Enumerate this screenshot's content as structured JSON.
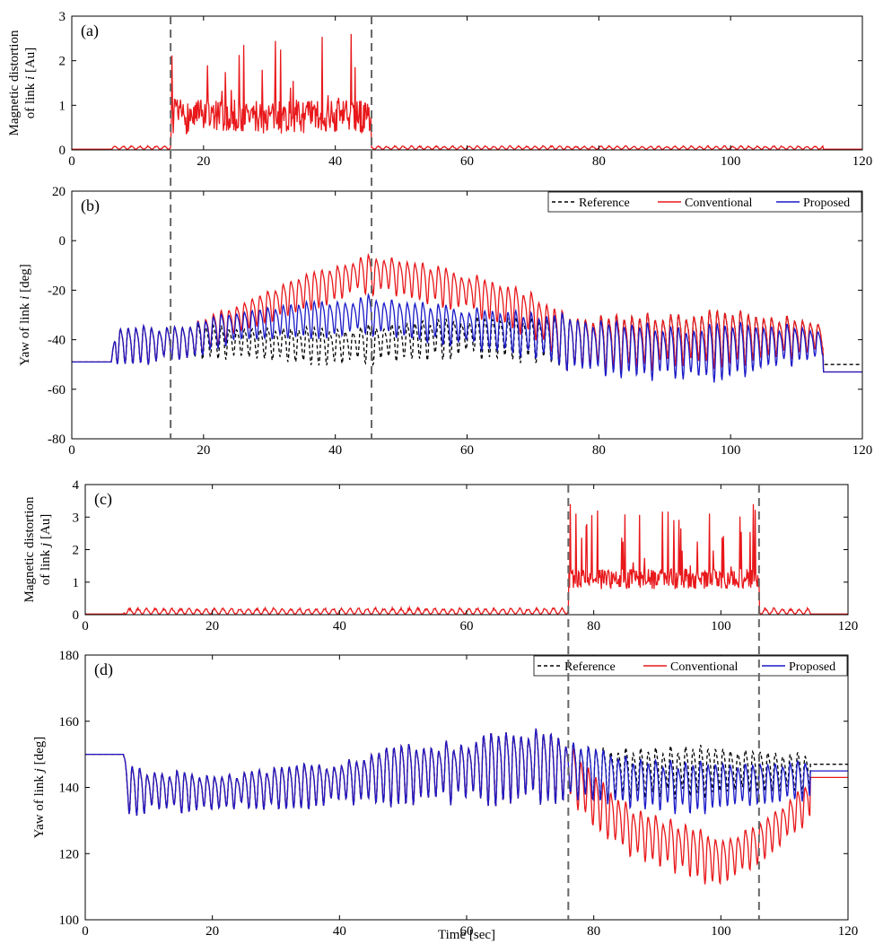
{
  "colors": {
    "reference": "#000000",
    "conventional": "#e8181b",
    "proposed": "#1a1ac8",
    "marker": "#666666"
  },
  "x_axis": {
    "label": "Time [sec]",
    "ticks": [
      "0",
      "20",
      "40",
      "60",
      "80",
      "100",
      "120"
    ]
  },
  "chart_data": [
    {
      "id": "a",
      "panel_label": "(a)",
      "type": "line",
      "ylabel_line1": "Magnetic distortion",
      "ylabel_line2_prefix": "of link ",
      "ylabel_var": "i",
      "ylabel_line2_suffix": " [Au]",
      "xlim": [
        0,
        120
      ],
      "ylim": [
        0,
        3
      ],
      "xticks": [
        0,
        20,
        40,
        60,
        80,
        100,
        120
      ],
      "yticks": [
        0,
        1,
        2,
        3
      ],
      "ytick_labels": [
        "0",
        "1",
        "2",
        "3"
      ],
      "markers_x": [
        15,
        45.5
      ],
      "series": [
        {
          "name": "Conventional",
          "key": "conventional",
          "signal": "distortion",
          "x_start": 0,
          "x_end": 120,
          "step": 0.1,
          "active": [
            15,
            45.5
          ],
          "baseline": 0.015,
          "quiet_window": [
            6,
            114
          ],
          "quiet_amplitude": 0.08,
          "quiet_freq": 0.8,
          "active_mean": 0.75,
          "active_spread": 0.55,
          "peak_max": 2.6,
          "seed": 7
        }
      ]
    },
    {
      "id": "b",
      "panel_label": "(b)",
      "type": "line",
      "ylabel_prefix": "Yaw of link ",
      "ylabel_var": "i",
      "ylabel_suffix": " [deg]",
      "xlim": [
        0,
        120
      ],
      "ylim": [
        -80,
        20
      ],
      "xticks": [
        0,
        20,
        40,
        60,
        80,
        100,
        120
      ],
      "yticks": [
        -80,
        -60,
        -40,
        -20,
        0,
        20
      ],
      "ytick_labels": [
        "-80",
        "-60",
        "-40",
        "-20",
        "0",
        "20"
      ],
      "markers_x": [
        15,
        45.5
      ],
      "legend": {
        "position": "top-right",
        "items": [
          {
            "label": "Reference",
            "key": "reference",
            "dash": "4,3"
          },
          {
            "label": "Conventional",
            "key": "conventional",
            "dash": ""
          },
          {
            "label": "Proposed",
            "key": "proposed",
            "dash": ""
          }
        ]
      },
      "series": [
        {
          "name": "Reference",
          "key": "reference",
          "dash": "4,3",
          "signal": "yaw",
          "x_start": 0,
          "x_end": 120,
          "step": 0.1,
          "osc_window": [
            6,
            114
          ],
          "start_level": -49,
          "end_level": -50,
          "freq": 0.85,
          "center": [
            [
              6,
              -42
            ],
            [
              20,
              -40
            ],
            [
              40,
              -42
            ],
            [
              60,
              -38
            ],
            [
              80,
              -40
            ],
            [
              100,
              -38
            ],
            [
              114,
              -38
            ]
          ],
          "amplitude": [
            [
              6,
              14
            ],
            [
              20,
              12
            ],
            [
              40,
              13
            ],
            [
              60,
              14
            ],
            [
              80,
              20
            ],
            [
              100,
              19
            ],
            [
              114,
              12
            ]
          ],
          "drift": [
            [
              0,
              0
            ],
            [
              120,
              0
            ]
          ],
          "seed": 11
        },
        {
          "name": "Conventional",
          "key": "conventional",
          "dash": "",
          "signal": "yaw",
          "x_start": 0,
          "x_end": 120,
          "step": 0.1,
          "osc_window": [
            6,
            114
          ],
          "start_level": -49,
          "end_level": -53,
          "freq": 0.85,
          "center": [
            [
              6,
              -42
            ],
            [
              20,
              -40
            ],
            [
              40,
              -42
            ],
            [
              60,
              -38
            ],
            [
              80,
              -40
            ],
            [
              100,
              -38
            ],
            [
              114,
              -38
            ]
          ],
          "amplitude": [
            [
              6,
              14
            ],
            [
              20,
              12
            ],
            [
              40,
              13
            ],
            [
              60,
              14
            ],
            [
              80,
              20
            ],
            [
              100,
              19
            ],
            [
              114,
              12
            ]
          ],
          "drift": [
            [
              0,
              0
            ],
            [
              18,
              0
            ],
            [
              24,
              8
            ],
            [
              34,
              20
            ],
            [
              43,
              28
            ],
            [
              47,
              28
            ],
            [
              55,
              22
            ],
            [
              70,
              10
            ],
            [
              75,
              0
            ],
            [
              120,
              0
            ]
          ],
          "seed": 11
        },
        {
          "name": "Proposed",
          "key": "proposed",
          "dash": "",
          "signal": "yaw",
          "x_start": 0,
          "x_end": 120,
          "step": 0.1,
          "osc_window": [
            6,
            114
          ],
          "start_level": -49,
          "end_level": -53,
          "freq": 0.85,
          "center": [
            [
              6,
              -42
            ],
            [
              20,
              -40
            ],
            [
              40,
              -42
            ],
            [
              60,
              -38
            ],
            [
              80,
              -40
            ],
            [
              100,
              -38
            ],
            [
              114,
              -38
            ]
          ],
          "amplitude": [
            [
              6,
              14
            ],
            [
              20,
              12
            ],
            [
              40,
              13
            ],
            [
              60,
              14
            ],
            [
              80,
              20
            ],
            [
              100,
              19
            ],
            [
              114,
              12
            ]
          ],
          "drift": [
            [
              0,
              0
            ],
            [
              18,
              0
            ],
            [
              24,
              6
            ],
            [
              34,
              10
            ],
            [
              45,
              12
            ],
            [
              50,
              9
            ],
            [
              60,
              4
            ],
            [
              70,
              2
            ],
            [
              75,
              0
            ],
            [
              80,
              -2
            ],
            [
              95,
              -6
            ],
            [
              110,
              -3
            ],
            [
              120,
              -3
            ]
          ],
          "seed": 11
        }
      ]
    },
    {
      "id": "c",
      "panel_label": "(c)",
      "type": "line",
      "ylabel_line1": "Magnetic distortion",
      "ylabel_line2_prefix": "of link ",
      "ylabel_var": "j",
      "ylabel_line2_suffix": " [Au]",
      "xlim": [
        0,
        120
      ],
      "ylim": [
        0,
        4
      ],
      "xticks": [
        0,
        20,
        40,
        60,
        80,
        100,
        120
      ],
      "yticks": [
        0,
        1,
        2,
        3,
        4
      ],
      "ytick_labels": [
        "0",
        "1",
        "2",
        "3",
        "4"
      ],
      "markers_x": [
        76,
        106
      ],
      "series": [
        {
          "name": "Conventional",
          "key": "conventional",
          "signal": "distortion",
          "x_start": 0,
          "x_end": 120,
          "step": 0.1,
          "active": [
            76,
            106
          ],
          "baseline": 0.02,
          "quiet_window": [
            6,
            114
          ],
          "quiet_amplitude": 0.2,
          "quiet_freq": 0.75,
          "active_mean": 1.1,
          "active_spread": 0.45,
          "peak_max": 3.4,
          "seed": 23
        }
      ]
    },
    {
      "id": "d",
      "panel_label": "(d)",
      "type": "line",
      "ylabel_prefix": "Yaw of link ",
      "ylabel_var": "j",
      "ylabel_suffix": " [deg]",
      "xlim": [
        0,
        120
      ],
      "ylim": [
        100,
        180
      ],
      "xticks": [
        0,
        20,
        40,
        60,
        80,
        100,
        120
      ],
      "yticks": [
        100,
        120,
        140,
        160,
        180
      ],
      "ytick_labels": [
        "100",
        "120",
        "140",
        "160",
        "180"
      ],
      "markers_x": [
        76,
        106
      ],
      "legend": {
        "position": "top-right",
        "items": [
          {
            "label": "Reference",
            "key": "reference",
            "dash": "4,3"
          },
          {
            "label": "Conventional",
            "key": "conventional",
            "dash": ""
          },
          {
            "label": "Proposed",
            "key": "proposed",
            "dash": ""
          }
        ]
      },
      "series": [
        {
          "name": "Reference",
          "key": "reference",
          "dash": "4,3",
          "signal": "yaw",
          "x_start": 0,
          "x_end": 120,
          "step": 0.1,
          "osc_window": [
            6,
            114
          ],
          "start_level": 150,
          "end_level": 147,
          "freq": 0.85,
          "center": [
            [
              6,
              140
            ],
            [
              20,
              139
            ],
            [
              40,
              142
            ],
            [
              50,
              145
            ],
            [
              60,
              146
            ],
            [
              70,
              148
            ],
            [
              80,
              145
            ],
            [
              100,
              146
            ],
            [
              114,
              145
            ]
          ],
          "amplitude": [
            [
              6,
              13
            ],
            [
              20,
              9
            ],
            [
              40,
              12
            ],
            [
              50,
              15
            ],
            [
              60,
              17
            ],
            [
              70,
              19
            ],
            [
              80,
              13
            ],
            [
              100,
              13
            ],
            [
              114,
              10
            ]
          ],
          "drift": [
            [
              0,
              0
            ],
            [
              120,
              0
            ]
          ],
          "seed": 31
        },
        {
          "name": "Conventional",
          "key": "conventional",
          "dash": "",
          "signal": "yaw",
          "x_start": 0,
          "x_end": 120,
          "step": 0.1,
          "osc_window": [
            6,
            114
          ],
          "start_level": 150,
          "end_level": 143,
          "freq": 0.85,
          "center": [
            [
              6,
              140
            ],
            [
              20,
              139
            ],
            [
              40,
              142
            ],
            [
              50,
              145
            ],
            [
              60,
              146
            ],
            [
              70,
              148
            ],
            [
              80,
              145
            ],
            [
              100,
              146
            ],
            [
              114,
              145
            ]
          ],
          "amplitude": [
            [
              6,
              13
            ],
            [
              20,
              9
            ],
            [
              40,
              12
            ],
            [
              50,
              15
            ],
            [
              60,
              17
            ],
            [
              70,
              19
            ],
            [
              80,
              13
            ],
            [
              100,
              13
            ],
            [
              114,
              10
            ]
          ],
          "drift": [
            [
              0,
              0
            ],
            [
              76,
              0
            ],
            [
              80,
              -8
            ],
            [
              86,
              -18
            ],
            [
              95,
              -24
            ],
            [
              100,
              -28
            ],
            [
              106,
              -22
            ],
            [
              112,
              -12
            ],
            [
              116,
              -4
            ],
            [
              120,
              -4
            ]
          ],
          "seed": 31
        },
        {
          "name": "Proposed",
          "key": "proposed",
          "dash": "",
          "signal": "yaw",
          "x_start": 0,
          "x_end": 120,
          "step": 0.1,
          "osc_window": [
            6,
            114
          ],
          "start_level": 150,
          "end_level": 145,
          "freq": 0.85,
          "center": [
            [
              6,
              140
            ],
            [
              20,
              139
            ],
            [
              40,
              142
            ],
            [
              50,
              145
            ],
            [
              60,
              146
            ],
            [
              70,
              148
            ],
            [
              80,
              145
            ],
            [
              100,
              146
            ],
            [
              114,
              145
            ]
          ],
          "amplitude": [
            [
              6,
              13
            ],
            [
              20,
              9
            ],
            [
              40,
              12
            ],
            [
              50,
              15
            ],
            [
              60,
              17
            ],
            [
              70,
              19
            ],
            [
              80,
              13
            ],
            [
              100,
              13
            ],
            [
              114,
              10
            ]
          ],
          "drift": [
            [
              0,
              0
            ],
            [
              80,
              0
            ],
            [
              86,
              -3
            ],
            [
              95,
              -5
            ],
            [
              106,
              -4
            ],
            [
              114,
              -2
            ],
            [
              120,
              -2
            ]
          ],
          "seed": 31
        }
      ]
    }
  ]
}
